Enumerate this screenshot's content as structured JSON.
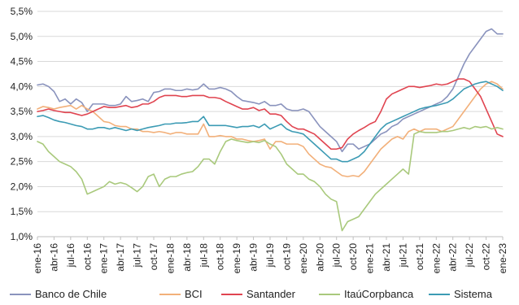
{
  "chart_data": {
    "type": "line",
    "x": [
      "ene-16",
      "feb-16",
      "mar-16",
      "abr-16",
      "may-16",
      "jun-16",
      "jul-16",
      "ago-16",
      "sep-16",
      "oct-16",
      "nov-16",
      "dic-16",
      "ene-17",
      "feb-17",
      "mar-17",
      "abr-17",
      "may-17",
      "jun-17",
      "jul-17",
      "ago-17",
      "sep-17",
      "oct-17",
      "nov-17",
      "dic-17",
      "ene-18",
      "feb-18",
      "mar-18",
      "abr-18",
      "may-18",
      "jun-18",
      "jul-18",
      "ago-18",
      "sep-18",
      "oct-18",
      "nov-18",
      "dic-18",
      "ene-19",
      "feb-19",
      "mar-19",
      "abr-19",
      "may-19",
      "jun-19",
      "jul-19",
      "ago-19",
      "sep-19",
      "oct-19",
      "nov-19",
      "dic-19",
      "ene-20",
      "feb-20",
      "mar-20",
      "abr-20",
      "may-20",
      "jun-20",
      "jul-20",
      "ago-20",
      "sep-20",
      "oct-20",
      "nov-20",
      "dic-20",
      "ene-21",
      "feb-21",
      "mar-21",
      "abr-21",
      "may-21",
      "jun-21",
      "jul-21",
      "ago-21",
      "sep-21",
      "oct-21",
      "nov-21",
      "dic-21",
      "ene-22",
      "feb-22",
      "mar-22",
      "abr-22",
      "may-22",
      "jun-22",
      "jul-22",
      "ago-22",
      "sep-22",
      "oct-22",
      "nov-22",
      "dic-22",
      "ene-23"
    ],
    "x_tick_labels": [
      "ene-16",
      "abr-16",
      "jul-16",
      "oct-16",
      "ene-17",
      "abr-17",
      "jul-17",
      "oct-17",
      "ene-18",
      "abr-18",
      "jul-18",
      "oct-18",
      "ene-19",
      "abr-19",
      "jul-19",
      "oct-19",
      "ene-20",
      "abr-20",
      "jul-20",
      "oct-20",
      "ene-21",
      "abr-21",
      "jul-21",
      "oct-21",
      "ene-22",
      "abr-22",
      "jul-22",
      "oct-22",
      "ene-23"
    ],
    "y_tick_labels": [
      "1,0%",
      "1,5%",
      "2,0%",
      "2,5%",
      "3,0%",
      "3,5%",
      "4,0%",
      "4,5%",
      "5,0%",
      "5,5%"
    ],
    "ylim": [
      1.0,
      5.5
    ],
    "y_ticks": [
      1.0,
      1.5,
      2.0,
      2.5,
      3.0,
      3.5,
      4.0,
      4.5,
      5.0,
      5.5
    ],
    "grid": "horizontal",
    "legend_position": "bottom",
    "series": [
      {
        "name": "Banco de Chile",
        "color": "#8a93bd",
        "values": [
          4.03,
          4.05,
          4.0,
          3.9,
          3.7,
          3.75,
          3.65,
          3.75,
          3.68,
          3.5,
          3.65,
          3.65,
          3.65,
          3.62,
          3.62,
          3.65,
          3.8,
          3.7,
          3.72,
          3.75,
          3.7,
          3.88,
          3.9,
          3.95,
          3.95,
          3.92,
          3.92,
          3.95,
          3.93,
          3.95,
          4.05,
          3.95,
          3.95,
          3.98,
          3.95,
          3.9,
          3.8,
          3.72,
          3.7,
          3.68,
          3.65,
          3.7,
          3.62,
          3.62,
          3.65,
          3.55,
          3.52,
          3.52,
          3.55,
          3.5,
          3.35,
          3.2,
          3.1,
          3.0,
          2.9,
          2.7,
          2.85,
          2.85,
          2.75,
          2.8,
          2.85,
          2.95,
          3.05,
          3.1,
          3.2,
          3.25,
          3.35,
          3.4,
          3.45,
          3.5,
          3.55,
          3.6,
          3.65,
          3.7,
          3.8,
          3.95,
          4.2,
          4.45,
          4.65,
          4.8,
          4.95,
          5.1,
          5.15,
          5.05,
          5.05
        ]
      },
      {
        "name": "BCI",
        "color": "#f2b07a",
        "values": [
          3.55,
          3.6,
          3.58,
          3.55,
          3.58,
          3.6,
          3.62,
          3.55,
          3.62,
          3.55,
          3.5,
          3.4,
          3.3,
          3.28,
          3.22,
          3.2,
          3.2,
          3.15,
          3.15,
          3.1,
          3.1,
          3.08,
          3.1,
          3.08,
          3.05,
          3.08,
          3.08,
          3.05,
          3.05,
          3.05,
          3.25,
          3.0,
          3.0,
          3.02,
          3.0,
          3.0,
          2.95,
          2.95,
          2.92,
          2.9,
          2.92,
          2.95,
          2.75,
          2.9,
          2.9,
          2.85,
          2.85,
          2.85,
          2.8,
          2.65,
          2.55,
          2.45,
          2.4,
          2.38,
          2.3,
          2.22,
          2.2,
          2.22,
          2.2,
          2.3,
          2.45,
          2.6,
          2.75,
          2.85,
          2.95,
          3.0,
          2.95,
          3.1,
          3.15,
          3.1,
          3.15,
          3.15,
          3.15,
          3.1,
          3.15,
          3.2,
          3.35,
          3.5,
          3.65,
          3.8,
          3.95,
          4.05,
          4.1,
          4.05,
          3.95
        ]
      },
      {
        "name": "Santander",
        "color": "#e04450",
        "values": [
          3.5,
          3.52,
          3.55,
          3.52,
          3.5,
          3.48,
          3.48,
          3.45,
          3.42,
          3.45,
          3.5,
          3.55,
          3.6,
          3.58,
          3.58,
          3.6,
          3.62,
          3.58,
          3.6,
          3.65,
          3.65,
          3.7,
          3.78,
          3.82,
          3.82,
          3.82,
          3.8,
          3.8,
          3.82,
          3.82,
          3.82,
          3.78,
          3.78,
          3.76,
          3.7,
          3.65,
          3.6,
          3.55,
          3.55,
          3.58,
          3.52,
          3.55,
          3.45,
          3.45,
          3.42,
          3.3,
          3.2,
          3.15,
          3.15,
          3.1,
          3.05,
          2.95,
          2.85,
          2.75,
          2.75,
          2.78,
          2.95,
          3.05,
          3.12,
          3.18,
          3.25,
          3.3,
          3.5,
          3.75,
          3.85,
          3.9,
          3.95,
          4.0,
          4.0,
          3.98,
          4.0,
          4.02,
          4.05,
          4.03,
          4.05,
          4.1,
          4.15,
          4.15,
          4.1,
          3.95,
          3.8,
          3.55,
          3.3,
          3.05,
          3.0
        ]
      },
      {
        "name": "ItaúCorpbanca",
        "color": "#a9c97c",
        "values": [
          2.9,
          2.85,
          2.7,
          2.6,
          2.5,
          2.45,
          2.4,
          2.3,
          2.15,
          1.85,
          1.9,
          1.95,
          2.0,
          2.1,
          2.05,
          2.08,
          2.05,
          1.98,
          1.9,
          2.0,
          2.2,
          2.25,
          2.0,
          2.15,
          2.2,
          2.2,
          2.25,
          2.28,
          2.3,
          2.4,
          2.55,
          2.55,
          2.45,
          2.7,
          2.9,
          2.95,
          2.92,
          2.9,
          2.88,
          2.9,
          2.88,
          2.92,
          2.85,
          2.8,
          2.65,
          2.45,
          2.35,
          2.25,
          2.25,
          2.15,
          2.1,
          2.0,
          1.85,
          1.75,
          1.7,
          1.12,
          1.3,
          1.35,
          1.4,
          1.55,
          1.7,
          1.85,
          1.95,
          2.05,
          2.15,
          2.25,
          2.35,
          2.25,
          3.05,
          3.1,
          3.08,
          3.08,
          3.08,
          3.1,
          3.1,
          3.12,
          3.15,
          3.18,
          3.15,
          3.2,
          3.18,
          3.2,
          3.15,
          3.18,
          3.15
        ]
      },
      {
        "name": "Sistema",
        "color": "#3c9bb4",
        "values": [
          3.4,
          3.42,
          3.38,
          3.33,
          3.3,
          3.28,
          3.25,
          3.22,
          3.2,
          3.15,
          3.15,
          3.18,
          3.18,
          3.15,
          3.18,
          3.15,
          3.12,
          3.15,
          3.12,
          3.15,
          3.18,
          3.2,
          3.22,
          3.25,
          3.25,
          3.27,
          3.27,
          3.28,
          3.3,
          3.3,
          3.4,
          3.22,
          3.22,
          3.22,
          3.22,
          3.2,
          3.18,
          3.2,
          3.2,
          3.22,
          3.18,
          3.25,
          3.15,
          3.2,
          3.25,
          3.15,
          3.1,
          3.08,
          3.05,
          2.95,
          2.85,
          2.75,
          2.65,
          2.55,
          2.55,
          2.5,
          2.5,
          2.55,
          2.6,
          2.7,
          2.85,
          3.0,
          3.15,
          3.25,
          3.3,
          3.35,
          3.4,
          3.45,
          3.5,
          3.55,
          3.58,
          3.6,
          3.62,
          3.65,
          3.68,
          3.75,
          3.85,
          3.95,
          4.0,
          4.05,
          4.08,
          4.1,
          4.05,
          4.0,
          3.92
        ]
      }
    ]
  },
  "colors": {
    "grid": "#d9d9d9",
    "axis": "#bfbfbf",
    "text": "#222222"
  }
}
